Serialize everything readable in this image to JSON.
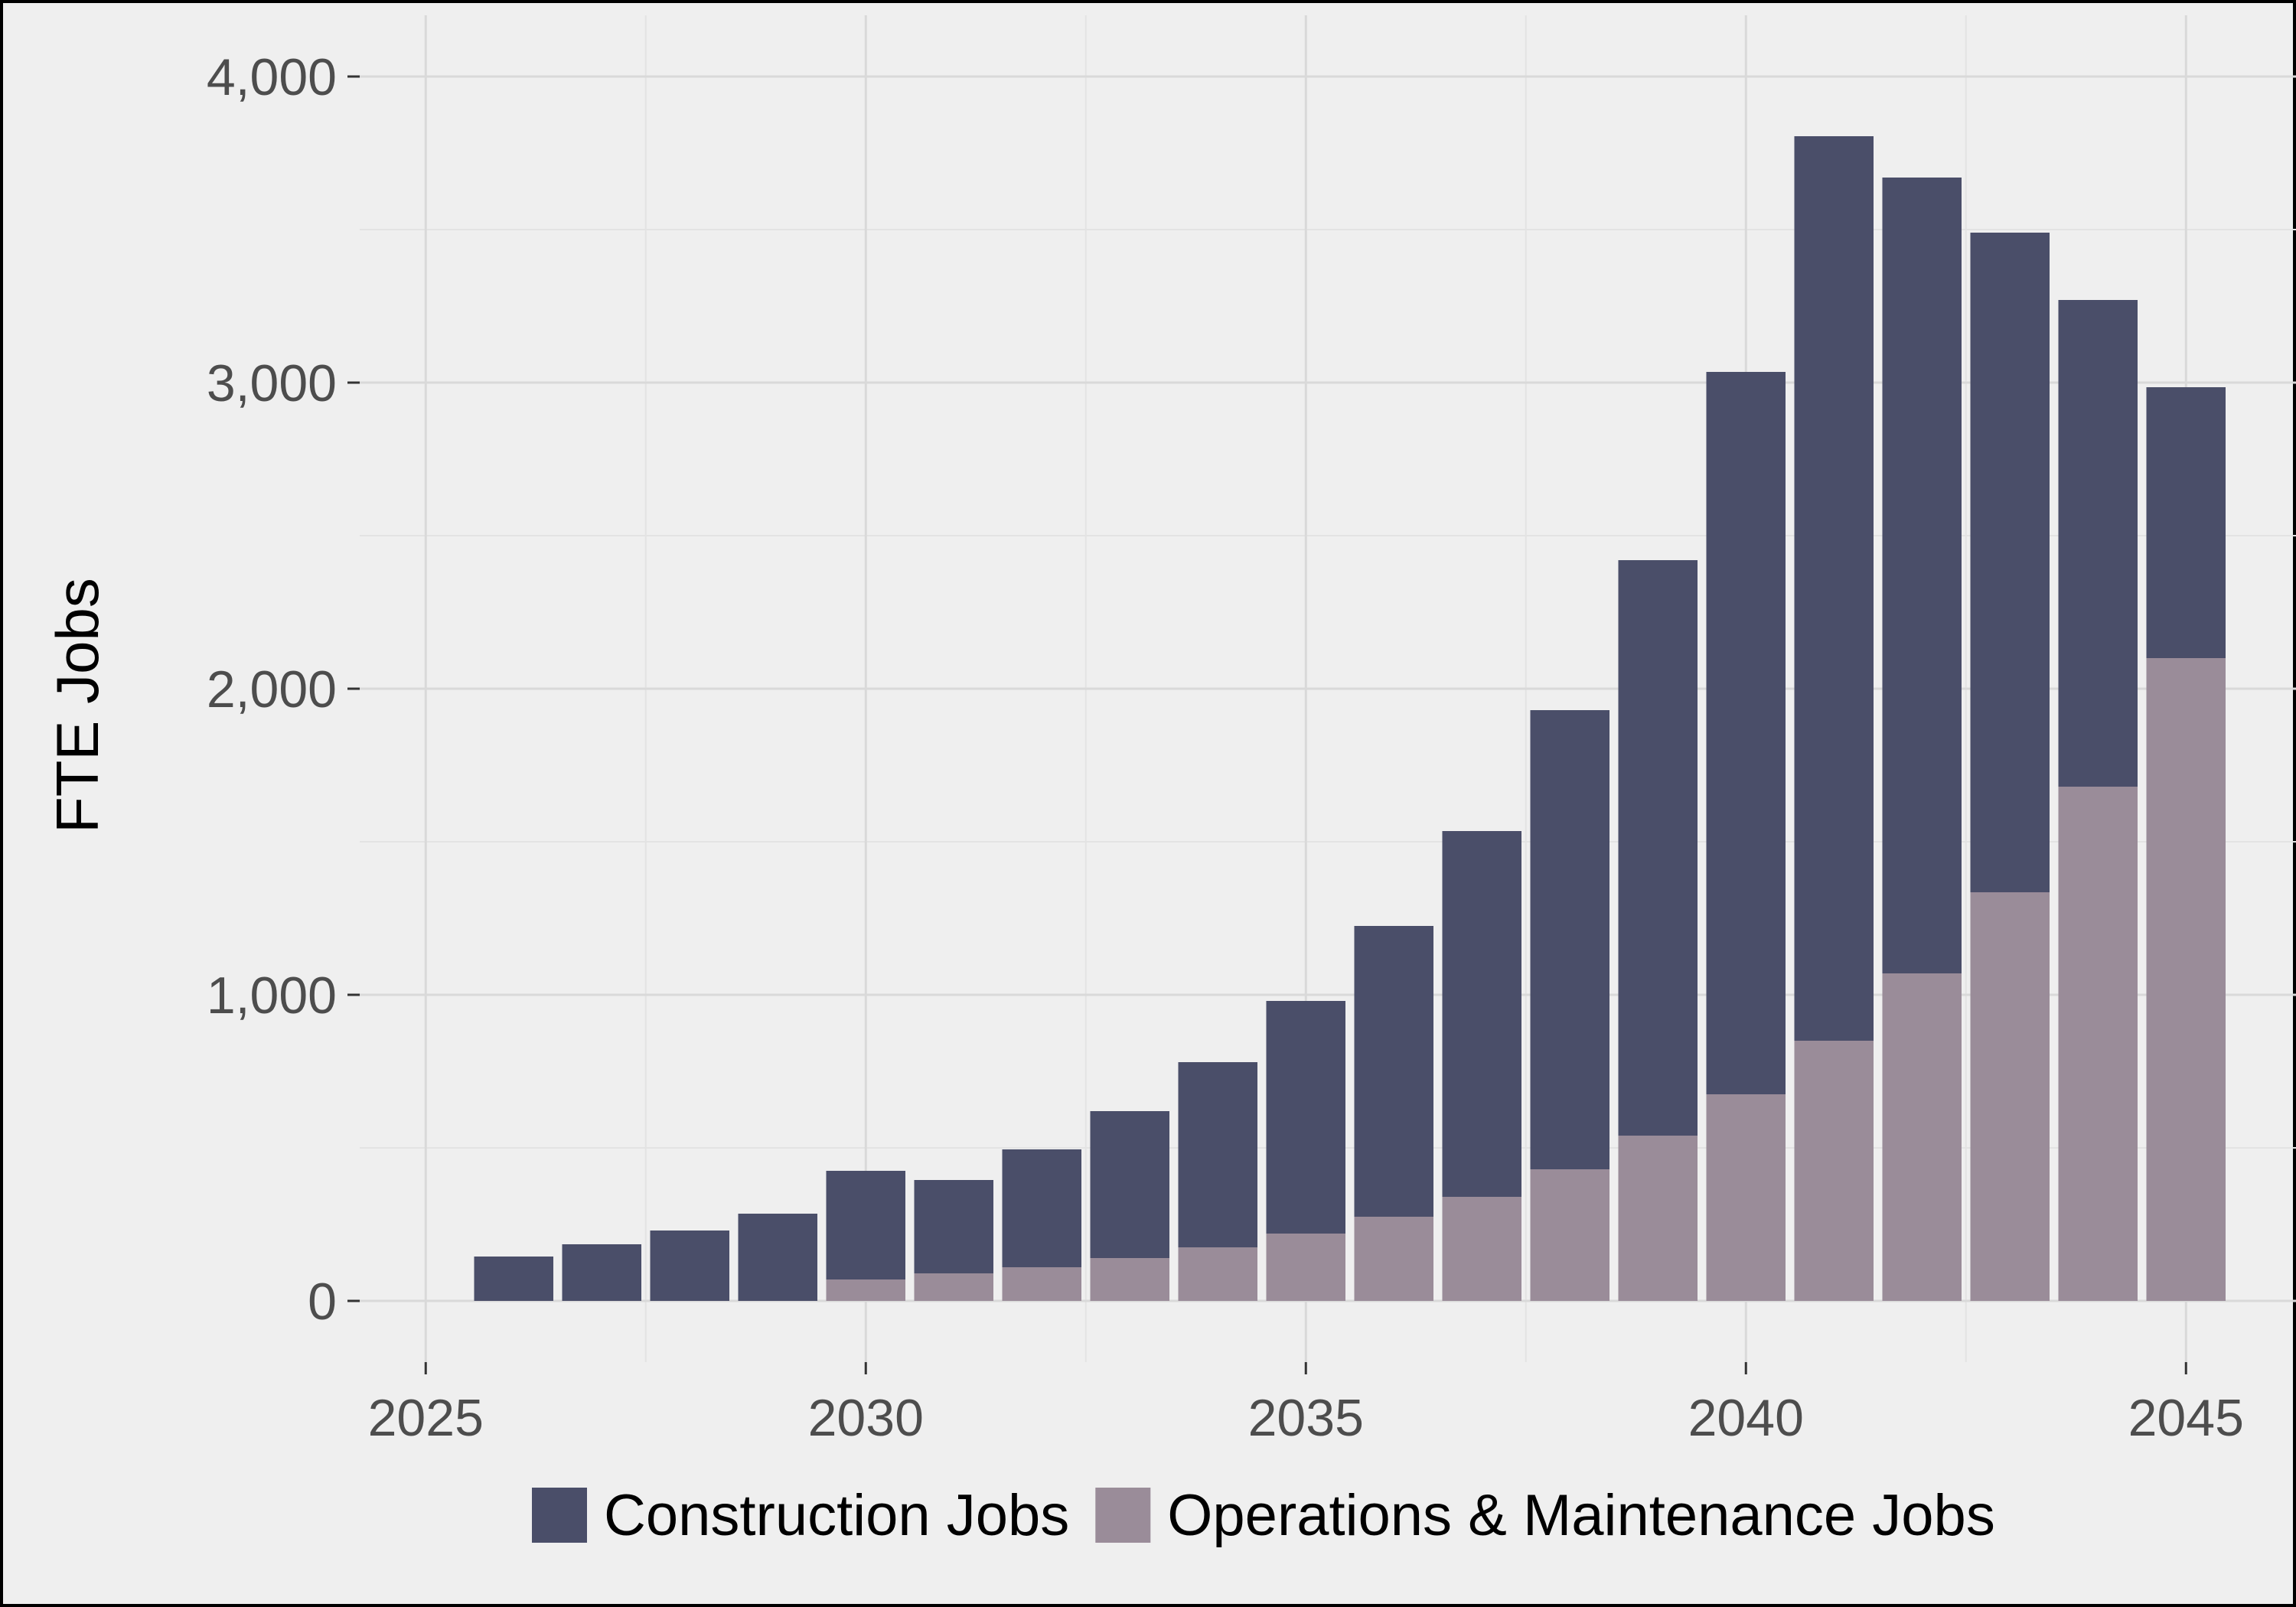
{
  "chart_data": {
    "type": "bar",
    "stacked": true,
    "title": "",
    "xlabel": "",
    "ylabel": "FTE Jobs",
    "x": [
      2026,
      2027,
      2028,
      2029,
      2030,
      2031,
      2032,
      2033,
      2034,
      2035,
      2036,
      2037,
      2038,
      2039,
      2040,
      2041,
      2042,
      2043,
      2044,
      2045
    ],
    "series": [
      {
        "name": "Operations & Maintenance Jobs",
        "color": "#9a8c99",
        "values": [
          0,
          0,
          0,
          0,
          70,
          90,
          110,
          140,
          175,
          220,
          275,
          340,
          430,
          540,
          675,
          850,
          1070,
          1335,
          1680,
          2100
        ]
      },
      {
        "name": "Construction Jobs",
        "color": "#4a4e69",
        "values": [
          145,
          185,
          230,
          285,
          355,
          305,
          385,
          480,
          605,
          760,
          950,
          1195,
          1500,
          1880,
          2360,
          2955,
          2600,
          2155,
          1590,
          885
        ]
      }
    ],
    "stack_order": [
      "Operations & Maintenance Jobs",
      "Construction Jobs"
    ],
    "xlim": [
      2024.25,
      2046.25
    ],
    "ylim": [
      -200,
      4200
    ],
    "x_ticks": [
      2025,
      2030,
      2035,
      2040,
      2045
    ],
    "x_tick_labels": [
      "2025",
      "2030",
      "2035",
      "2040",
      "2045"
    ],
    "x_minor_ticks": [
      2027.5,
      2032.5,
      2037.5,
      2042.5
    ],
    "y_ticks": [
      0,
      1000,
      2000,
      3000,
      4000
    ],
    "y_tick_labels": [
      "0",
      "1,000",
      "2,000",
      "3,000",
      "4,000"
    ],
    "y_minor_ticks": [
      500,
      1500,
      2500,
      3500
    ],
    "grid": true,
    "legend": {
      "position": "bottom",
      "entries": [
        {
          "label": "Construction Jobs",
          "color": "#4a4e69"
        },
        {
          "label": "Operations & Maintenance Jobs",
          "color": "#9a8c99"
        }
      ]
    },
    "colors": {
      "panel_background": "#efefef",
      "grid_major": "#d9d9d9",
      "grid_minor": "#e3e3e3",
      "border": "#000000"
    }
  }
}
